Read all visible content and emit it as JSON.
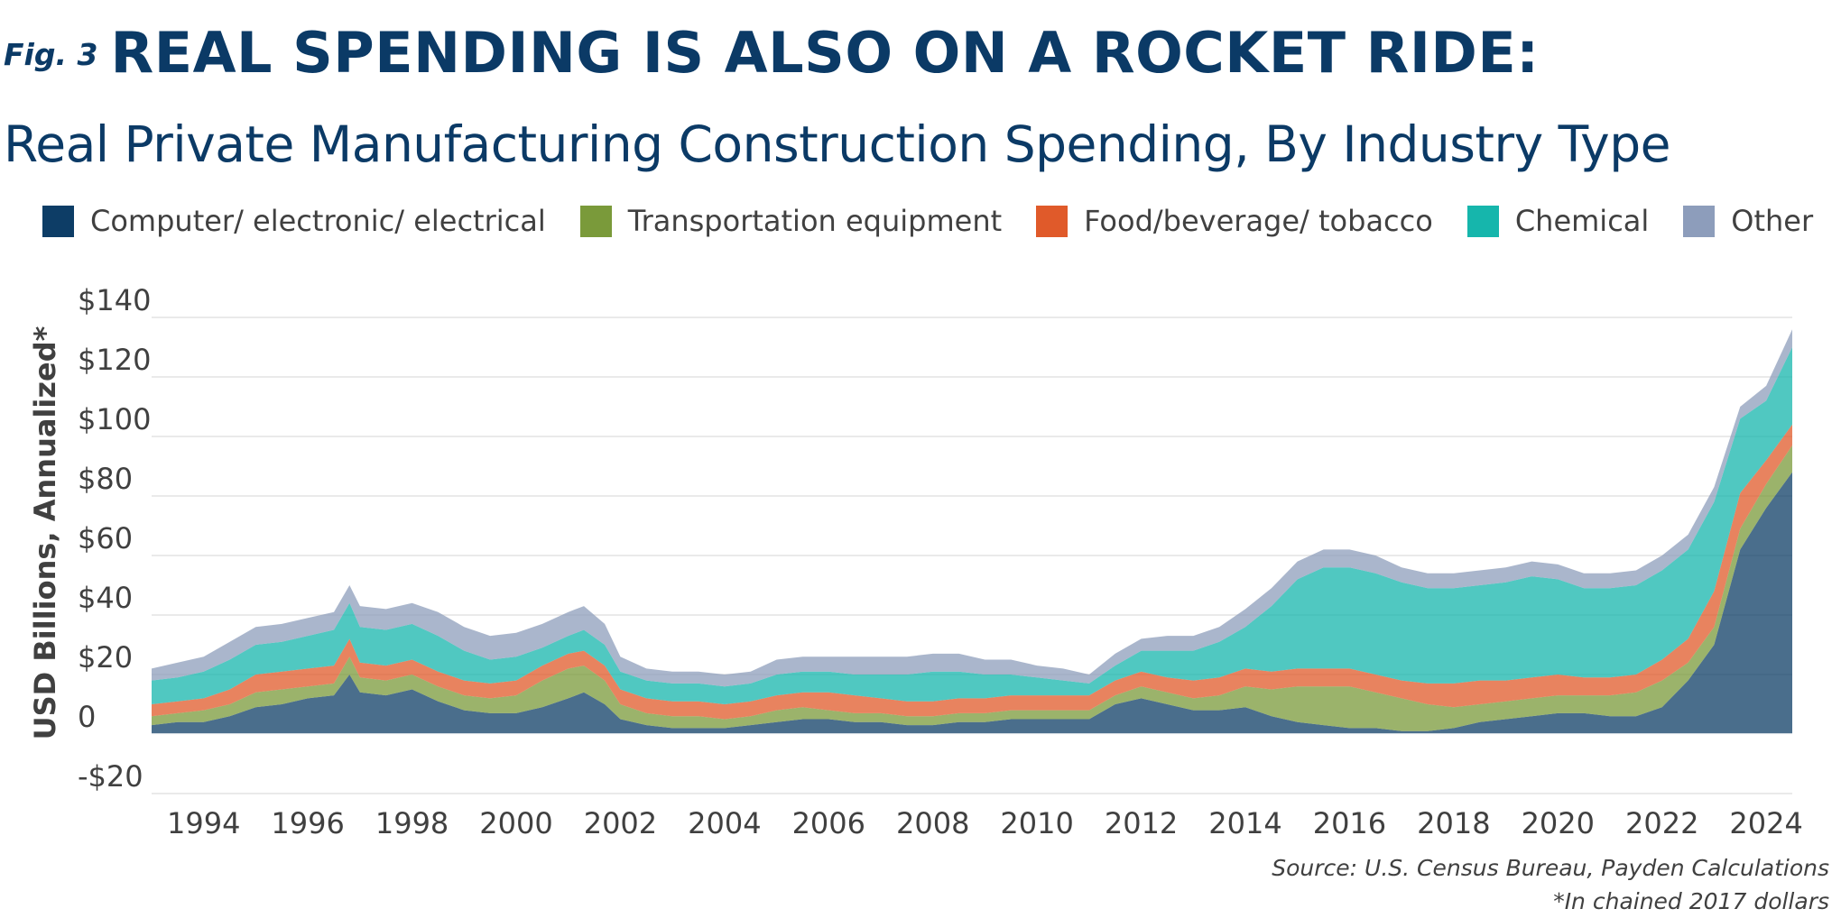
{
  "header": {
    "fig_label": "Fig. 3",
    "title": "REAL SPENDING IS ALSO ON A ROCKET RIDE:",
    "subtitle": "Real Private Manufacturing Construction Spending, By Industry Type"
  },
  "footer": {
    "source": "Source: U.S. Census Bureau, Payden Calculations",
    "note": "*In chained 2017 dollars"
  },
  "chart_data": {
    "type": "area",
    "stacked": true,
    "title": "Real Private Manufacturing Construction Spending, By Industry Type",
    "ylabel": "USD Billions, Annualized*",
    "xlabel": "",
    "ylim": [
      -20,
      140
    ],
    "xlim": [
      1993,
      2024.5
    ],
    "grid": true,
    "legend_position": "top",
    "y_ticks": [
      {
        "value": 140,
        "label": "$140"
      },
      {
        "value": 120,
        "label": "$120"
      },
      {
        "value": 100,
        "label": "$100"
      },
      {
        "value": 80,
        "label": "$80"
      },
      {
        "value": 60,
        "label": "$60"
      },
      {
        "value": 40,
        "label": "$40"
      },
      {
        "value": 20,
        "label": "$20"
      },
      {
        "value": 0,
        "label": "0"
      },
      {
        "value": -20,
        "label": "-$20"
      }
    ],
    "x_ticks": [
      "1994",
      "1996",
      "1998",
      "2000",
      "2002",
      "2004",
      "2006",
      "2008",
      "2010",
      "2012",
      "2014",
      "2016",
      "2018",
      "2020",
      "2022",
      "2024"
    ],
    "x": [
      1993.0,
      1993.5,
      1994.0,
      1994.5,
      1995.0,
      1995.5,
      1996.0,
      1996.5,
      1996.8,
      1997.0,
      1997.5,
      1998.0,
      1998.5,
      1999.0,
      1999.5,
      2000.0,
      2000.5,
      2001.0,
      2001.3,
      2001.7,
      2002.0,
      2002.5,
      2003.0,
      2003.5,
      2004.0,
      2004.5,
      2005.0,
      2005.5,
      2006.0,
      2006.5,
      2007.0,
      2007.5,
      2008.0,
      2008.5,
      2009.0,
      2009.5,
      2010.0,
      2010.5,
      2011.0,
      2011.5,
      2012.0,
      2012.5,
      2013.0,
      2013.5,
      2014.0,
      2014.5,
      2015.0,
      2015.5,
      2016.0,
      2016.5,
      2017.0,
      2017.5,
      2018.0,
      2018.5,
      2019.0,
      2019.5,
      2020.0,
      2020.5,
      2021.0,
      2021.5,
      2022.0,
      2022.5,
      2023.0,
      2023.5,
      2024.0,
      2024.5
    ],
    "series": [
      {
        "name": "Computer/ electronic/ electrical",
        "color": "#0d3d66",
        "values": [
          3,
          4,
          4,
          6,
          9,
          10,
          12,
          13,
          20,
          14,
          13,
          15,
          11,
          8,
          7,
          7,
          9,
          12,
          14,
          10,
          5,
          3,
          2,
          2,
          2,
          3,
          4,
          5,
          5,
          4,
          4,
          3,
          3,
          4,
          4,
          5,
          5,
          5,
          5,
          10,
          12,
          10,
          8,
          8,
          9,
          6,
          4,
          3,
          2,
          2,
          1,
          1,
          2,
          4,
          5,
          6,
          7,
          7,
          6,
          6,
          9,
          18,
          30,
          62,
          76,
          88
        ]
      },
      {
        "name": "Transportation equipment",
        "color": "#7a9a3a",
        "values": [
          3,
          3,
          4,
          4,
          5,
          5,
          4,
          4,
          6,
          5,
          5,
          5,
          5,
          5,
          5,
          6,
          9,
          10,
          9,
          8,
          5,
          4,
          4,
          4,
          3,
          3,
          4,
          4,
          3,
          3,
          3,
          3,
          3,
          3,
          3,
          3,
          3,
          3,
          3,
          3,
          4,
          4,
          4,
          5,
          7,
          9,
          12,
          13,
          14,
          12,
          11,
          9,
          7,
          6,
          6,
          6,
          6,
          6,
          7,
          8,
          9,
          6,
          6,
          7,
          8,
          9
        ]
      },
      {
        "name": "Food/beverage/ tobacco",
        "color": "#e05a2a",
        "values": [
          4,
          4,
          4,
          5,
          6,
          6,
          6,
          6,
          6,
          5,
          5,
          5,
          5,
          5,
          5,
          5,
          5,
          5,
          5,
          5,
          5,
          5,
          5,
          5,
          5,
          5,
          5,
          5,
          6,
          6,
          5,
          5,
          5,
          5,
          5,
          5,
          5,
          5,
          5,
          5,
          5,
          5,
          6,
          6,
          6,
          6,
          6,
          6,
          6,
          6,
          6,
          7,
          8,
          8,
          7,
          7,
          7,
          6,
          6,
          6,
          7,
          8,
          12,
          12,
          8,
          7
        ]
      },
      {
        "name": "Chemical",
        "color": "#16b6ac",
        "values": [
          8,
          8,
          9,
          10,
          10,
          10,
          11,
          12,
          12,
          12,
          12,
          12,
          12,
          10,
          8,
          8,
          6,
          6,
          7,
          7,
          6,
          6,
          6,
          6,
          6,
          6,
          7,
          7,
          7,
          7,
          8,
          9,
          10,
          9,
          8,
          7,
          6,
          5,
          4,
          5,
          7,
          9,
          10,
          12,
          14,
          22,
          30,
          34,
          34,
          34,
          33,
          32,
          32,
          32,
          33,
          34,
          32,
          30,
          30,
          30,
          30,
          30,
          30,
          25,
          20,
          26
        ]
      },
      {
        "name": "Other",
        "color": "#8d9dbb",
        "values": [
          4,
          5,
          5,
          6,
          6,
          6,
          6,
          6,
          6,
          7,
          7,
          7,
          8,
          8,
          8,
          8,
          8,
          8,
          8,
          7,
          5,
          4,
          4,
          4,
          4,
          4,
          5,
          5,
          5,
          6,
          6,
          6,
          6,
          6,
          5,
          5,
          4,
          4,
          3,
          4,
          4,
          5,
          5,
          5,
          6,
          6,
          6,
          6,
          6,
          6,
          5,
          5,
          5,
          5,
          5,
          5,
          5,
          5,
          5,
          5,
          5,
          5,
          5,
          4,
          5,
          6
        ]
      }
    ]
  }
}
